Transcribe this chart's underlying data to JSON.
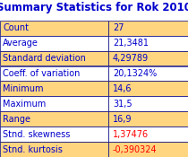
{
  "title": "Summary Statistics for Rok 2010",
  "title_color": "#0000CC",
  "title_fontsize": 8.5,
  "rows": [
    [
      "Count",
      "27"
    ],
    [
      "Average",
      "21,3481"
    ],
    [
      "Standard deviation",
      "4,29789"
    ],
    [
      "Coeff. of variation",
      "20,1324%"
    ],
    [
      "Minimum",
      "14,6"
    ],
    [
      "Maximum",
      "31,5"
    ],
    [
      "Range",
      "16,9"
    ],
    [
      "Stnd. skewness",
      "1,37476"
    ],
    [
      "Stnd. kurtosis",
      "-0,390324"
    ]
  ],
  "label_color": "#0000CC",
  "value_color_default": "#0000CC",
  "value_color_red": "#FF0000",
  "red_rows": [
    7,
    8
  ],
  "col_split": 0.575,
  "bg_color_odd": "#FFD580",
  "bg_color_even": "#FFFFFF",
  "border_color": "#000080",
  "font_size": 7.0,
  "figsize": [
    2.1,
    1.75
  ],
  "dpi": 100
}
